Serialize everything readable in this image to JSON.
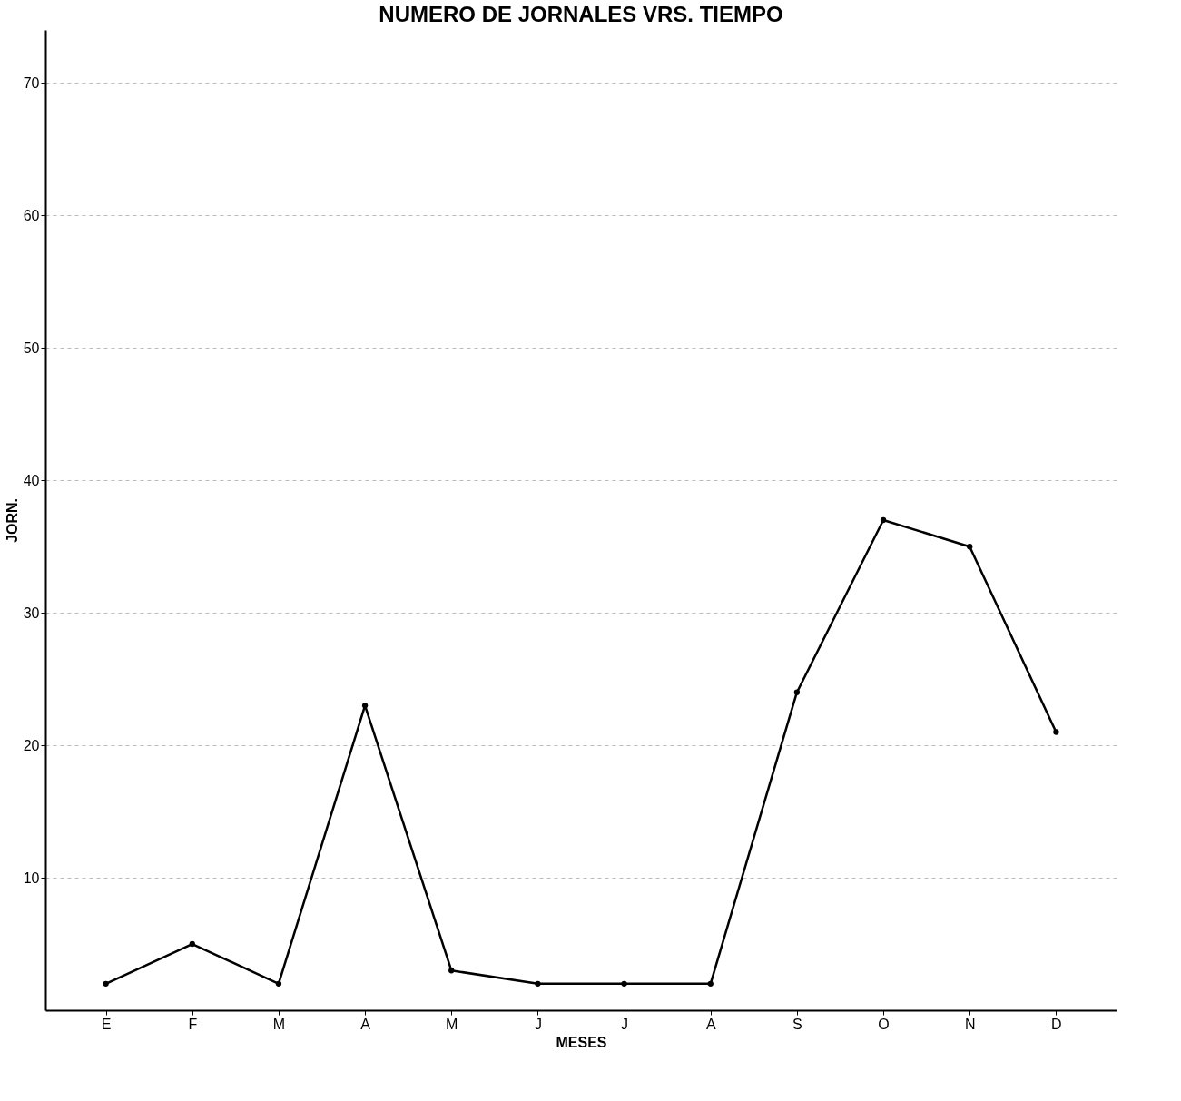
{
  "chart_data": {
    "type": "line",
    "title": "NUMERO DE JORNALES VRS. TIEMPO",
    "xlabel": "MESES",
    "ylabel": "JORN.",
    "categories": [
      "E",
      "F",
      "M",
      "A",
      "M",
      "J",
      "J",
      "A",
      "S",
      "O",
      "N",
      "D"
    ],
    "series": [
      {
        "color": "#000000",
        "values": [
          2,
          5,
          2,
          23,
          3,
          2,
          2,
          2,
          24,
          37,
          35,
          21
        ]
      }
    ],
    "ylim": [
      0,
      74
    ],
    "yticks": [
      10,
      20,
      30,
      40,
      50,
      60,
      70
    ],
    "grid": "y",
    "marker": "circle",
    "line_style": "solid"
  }
}
